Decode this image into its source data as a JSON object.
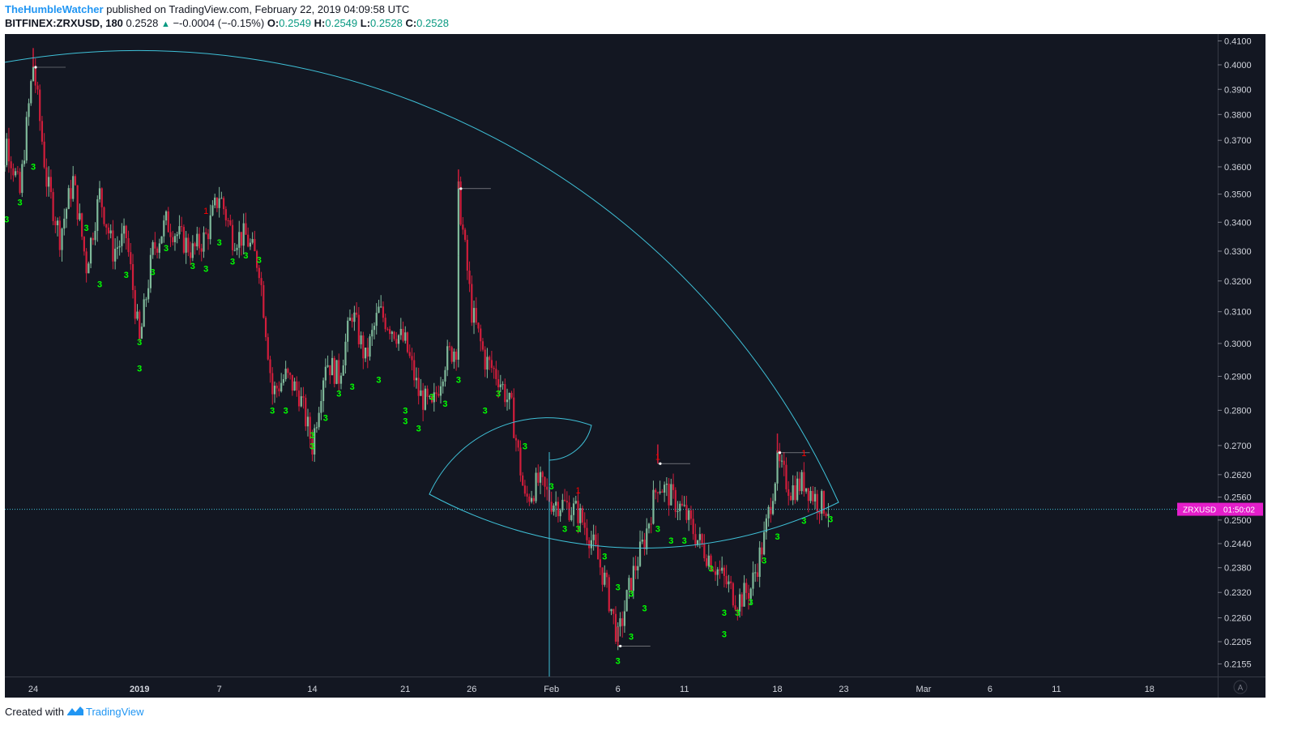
{
  "header": {
    "author": "TheHumbleWatcher",
    "published_text": "published on TradingView.com, February 22, 2019 04:09:58 UTC",
    "symbol": "BITFINEX:ZRXUSD, 180",
    "last_price": "0.2528",
    "change": "−-0.0004 (−-0.15%)",
    "o_label": "O:",
    "o_value": "0.2549",
    "h_label": "H:",
    "h_value": "0.2549",
    "l_label": "L:",
    "l_value": "0.2528",
    "c_label": "C:",
    "c_value": "0.2528"
  },
  "price_tag": {
    "symbol": "ZRXUSD",
    "countdown": "01:50:02"
  },
  "auto_scale_label": "A",
  "footer": {
    "created_with": "Created with",
    "brand": "TradingView"
  },
  "colors": {
    "background": "#131722",
    "up": "#7fb99a",
    "down": "#d11d3b",
    "setup_count": "#00ff00",
    "countdown_1": "#ff0000",
    "fib_spiral": "#3fc1d8",
    "price_line": "#3fc1d8",
    "price_tag": "#e41eca"
  },
  "chart_data": {
    "type": "candlestick",
    "y_axis_ticks": [
      "0.4100",
      "0.4000",
      "0.3900",
      "0.3800",
      "0.3700",
      "0.3600",
      "0.3500",
      "0.3400",
      "0.3300",
      "0.3200",
      "0.3100",
      "0.3000",
      "0.2900",
      "0.2800",
      "0.2700",
      "0.2620",
      "0.2560",
      "0.2500",
      "0.2440",
      "0.2380",
      "0.2320",
      "0.2260",
      "0.2205",
      "0.2155"
    ],
    "y_scale": "log",
    "x_axis_labels": [
      "24",
      "2019",
      "7",
      "14",
      "21",
      "26",
      "Feb",
      "6",
      "11",
      "18",
      "23",
      "Mar",
      "6",
      "11",
      "18"
    ],
    "current_price": 0.2528,
    "series_path": [
      [
        "Dec 21",
        0.33
      ],
      [
        "Dec 22",
        0.37
      ],
      [
        "Dec 23",
        0.35
      ],
      [
        "Dec 24",
        0.4
      ],
      [
        "Dec 25",
        0.355
      ],
      [
        "Dec 26",
        0.335
      ],
      [
        "Dec 27",
        0.355
      ],
      [
        "Dec 28",
        0.325
      ],
      [
        "Dec 29",
        0.35
      ],
      [
        "Dec 30",
        0.33
      ],
      [
        "Dec 31",
        0.335
      ],
      [
        "Jan 1",
        0.3
      ],
      [
        "Jan 2",
        0.33
      ],
      [
        "Jan 3",
        0.34
      ],
      [
        "Jan 4",
        0.335
      ],
      [
        "Jan 5",
        0.33
      ],
      [
        "Jan 6",
        0.335
      ],
      [
        "Jan 7",
        0.35
      ],
      [
        "Jan 8",
        0.335
      ],
      [
        "Jan 9",
        0.335
      ],
      [
        "Jan 10",
        0.325
      ],
      [
        "Jan 11",
        0.285
      ],
      [
        "Jan 12",
        0.29
      ],
      [
        "Jan 13",
        0.285
      ],
      [
        "Jan 14",
        0.27
      ],
      [
        "Jan 15",
        0.295
      ],
      [
        "Jan 16",
        0.29
      ],
      [
        "Jan 17",
        0.31
      ],
      [
        "Jan 18",
        0.295
      ],
      [
        "Jan 19",
        0.31
      ],
      [
        "Jan 20",
        0.305
      ],
      [
        "Jan 21",
        0.3
      ],
      [
        "Jan 22",
        0.285
      ],
      [
        "Jan 23",
        0.28
      ],
      [
        "Jan 24",
        0.295
      ],
      [
        "Jan 25",
        0.3
      ],
      [
        "Jan 25",
        0.35
      ],
      [
        "Jan 26",
        0.31
      ],
      [
        "Jan 27",
        0.295
      ],
      [
        "Jan 28",
        0.29
      ],
      [
        "Jan 29",
        0.28
      ],
      [
        "Jan 30",
        0.255
      ],
      [
        "Jan 31",
        0.26
      ],
      [
        "Feb 1",
        0.255
      ],
      [
        "Feb 2",
        0.254
      ],
      [
        "Feb 3",
        0.252
      ],
      [
        "Feb 4",
        0.245
      ],
      [
        "Feb 5",
        0.235
      ],
      [
        "Feb 6",
        0.221
      ],
      [
        "Feb 7",
        0.235
      ],
      [
        "Feb 8",
        0.245
      ],
      [
        "Feb 9",
        0.26
      ],
      [
        "Feb 10",
        0.256
      ],
      [
        "Feb 11",
        0.252
      ],
      [
        "Feb 12",
        0.245
      ],
      [
        "Feb 13",
        0.24
      ],
      [
        "Feb 14",
        0.235
      ],
      [
        "Feb 15",
        0.23
      ],
      [
        "Feb 16",
        0.233
      ],
      [
        "Feb 17",
        0.245
      ],
      [
        "Feb 18",
        0.265
      ],
      [
        "Feb 19",
        0.258
      ],
      [
        "Feb 20",
        0.26
      ],
      [
        "Feb 21",
        0.255
      ],
      [
        "Feb 22",
        0.2528
      ]
    ],
    "key_levels": {
      "high": [
        "Dec 24",
        0.399
      ],
      "spike_high": [
        "Jan 25",
        0.352
      ],
      "low": [
        "Feb 6",
        0.2195
      ],
      "swing_high_feb": [
        "Feb 9",
        0.265
      ],
      "swing_high_recent": [
        "Feb 18",
        0.268
      ]
    },
    "setup_labels": [
      {
        "text": "3",
        "x": "Dec 21",
        "y": 0.329
      },
      {
        "text": "3",
        "x": "Dec 22",
        "y": 0.34
      },
      {
        "text": "3",
        "x": "Dec 23",
        "y": 0.346
      },
      {
        "text": "3",
        "x": "Dec 24",
        "y": 0.359
      },
      {
        "text": "3",
        "x": "Dec 28",
        "y": 0.337
      },
      {
        "text": "3",
        "x": "Dec 29",
        "y": 0.318
      },
      {
        "text": "3",
        "x": "Dec 31",
        "y": 0.321
      },
      {
        "text": "3",
        "x": "Jan 1",
        "y": 0.2995
      },
      {
        "text": "3",
        "x": "Jan 1",
        "y": 0.2915
      },
      {
        "text": "3",
        "x": "Jan 2",
        "y": 0.322
      },
      {
        "text": "3",
        "x": "Jan 3",
        "y": 0.33
      },
      {
        "text": "3",
        "x": "Jan 5",
        "y": 0.324
      },
      {
        "text": "3",
        "x": "Jan 6",
        "y": 0.323
      },
      {
        "text": "3",
        "x": "Jan 7",
        "y": 0.332
      },
      {
        "text": "3",
        "x": "Jan 8",
        "y": 0.3255
      },
      {
        "text": "3",
        "x": "Jan 9",
        "y": 0.3275
      },
      {
        "text": "3",
        "x": "Jan 10",
        "y": 0.326
      },
      {
        "text": "3",
        "x": "Jan 11",
        "y": 0.279
      },
      {
        "text": "3",
        "x": "Jan 12",
        "y": 0.279
      },
      {
        "text": "3",
        "x": "Jan 14",
        "y": 0.272
      },
      {
        "text": "3",
        "x": "Jan 14",
        "y": 0.269
      },
      {
        "text": "3",
        "x": "Jan 15",
        "y": 0.277
      },
      {
        "text": "3",
        "x": "Jan 16",
        "y": 0.284
      },
      {
        "text": "3",
        "x": "Jan 17",
        "y": 0.286
      },
      {
        "text": "3",
        "x": "Jan 19",
        "y": 0.288
      },
      {
        "text": "3",
        "x": "Jan 21",
        "y": 0.276
      },
      {
        "text": "3",
        "x": "Jan 21",
        "y": 0.279
      },
      {
        "text": "3",
        "x": "Jan 22",
        "y": 0.274
      },
      {
        "text": "3",
        "x": "Jan 23",
        "y": 0.283
      },
      {
        "text": "3",
        "x": "Jan 24",
        "y": 0.281
      },
      {
        "text": "3",
        "x": "Jan 25",
        "y": 0.288
      },
      {
        "text": "3",
        "x": "Jan 27",
        "y": 0.279
      },
      {
        "text": "3",
        "x": "Jan 28",
        "y": 0.284
      },
      {
        "text": "3",
        "x": "Jan 30",
        "y": 0.269
      },
      {
        "text": "3",
        "x": "Feb 1",
        "y": 0.258
      },
      {
        "text": "3",
        "x": "Feb 2",
        "y": 0.247
      },
      {
        "text": "3",
        "x": "Feb 3",
        "y": 0.247
      },
      {
        "text": "3",
        "x": "Feb 5",
        "y": 0.24
      },
      {
        "text": "3",
        "x": "Feb 6",
        "y": 0.2325
      },
      {
        "text": "3",
        "x": "Feb 7",
        "y": 0.231
      },
      {
        "text": "3",
        "x": "Feb 8",
        "y": 0.2275
      },
      {
        "text": "3",
        "x": "Feb 7",
        "y": 0.221
      },
      {
        "text": "3",
        "x": "Feb 6",
        "y": 0.2155
      },
      {
        "text": "3",
        "x": "Feb 9",
        "y": 0.247
      },
      {
        "text": "3",
        "x": "Feb 10",
        "y": 0.244
      },
      {
        "text": "3",
        "x": "Feb 11",
        "y": 0.244
      },
      {
        "text": "3",
        "x": "Feb 13",
        "y": 0.237
      },
      {
        "text": "3",
        "x": "Feb 14",
        "y": 0.2265
      },
      {
        "text": "3",
        "x": "Feb 14",
        "y": 0.2215
      },
      {
        "text": "3",
        "x": "Feb 15",
        "y": 0.2265
      },
      {
        "text": "3",
        "x": "Feb 16",
        "y": 0.229
      },
      {
        "text": "3",
        "x": "Feb 17",
        "y": 0.239
      },
      {
        "text": "3",
        "x": "Feb 18",
        "y": 0.245
      },
      {
        "text": "3",
        "x": "Feb 20",
        "y": 0.249
      },
      {
        "text": "3",
        "x": "Feb 22",
        "y": 0.2495
      }
    ],
    "countdown_labels": [
      {
        "text": "1",
        "x": "Jan 6",
        "y": 0.343
      },
      {
        "text": "1",
        "x": "Feb 3",
        "y": 0.257
      },
      {
        "text": "1",
        "x": "Feb 9",
        "y": 0.266
      },
      {
        "text": "1",
        "x": "Feb 20",
        "y": 0.267
      }
    ],
    "drawings": [
      "fibonacci spiral",
      "horizontal price line at last price"
    ]
  }
}
